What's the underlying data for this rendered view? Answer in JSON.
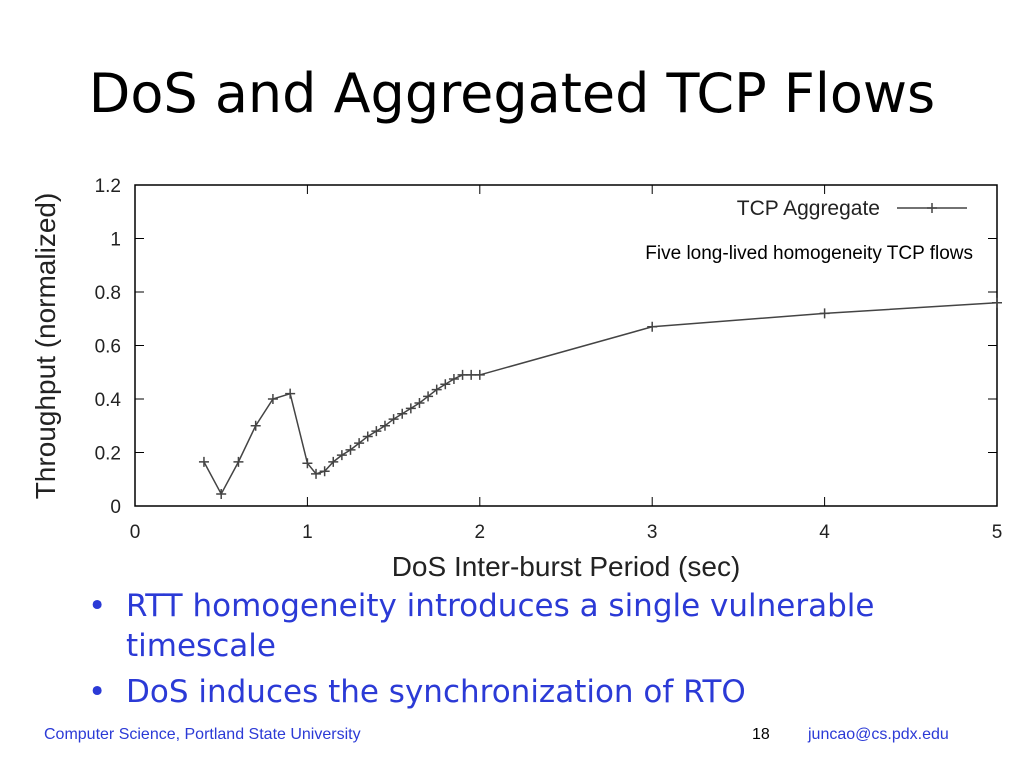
{
  "title": "DoS and Aggregated TCP Flows",
  "bullets": [
    "RTT homogeneity introduces a single vulnerable timescale",
    "DoS induces the synchronization of RTO"
  ],
  "footer": {
    "left": "Computer Science, Portland State University",
    "page": "18",
    "email": "juncao@cs.pdx.edu"
  },
  "chart_data": {
    "type": "line",
    "xlabel": "DoS Inter-burst Period (sec)",
    "ylabel": "Throughput (normalized)",
    "annotation": "Five long-lived homogeneity TCP flows",
    "legend": "top-right",
    "grid": false,
    "xlim": [
      0,
      5
    ],
    "xticks": [
      0,
      1,
      2,
      3,
      4,
      5
    ],
    "ylim": [
      0,
      1.2
    ],
    "yticks": [
      0,
      0.2,
      0.4,
      0.6,
      0.8,
      1,
      1.2
    ],
    "x": [
      0.4,
      0.5,
      0.6,
      0.7,
      0.8,
      0.9,
      1.0,
      1.05,
      1.1,
      1.15,
      1.2,
      1.25,
      1.3,
      1.35,
      1.4,
      1.45,
      1.5,
      1.55,
      1.6,
      1.65,
      1.7,
      1.75,
      1.8,
      1.85,
      1.9,
      1.95,
      2.0,
      3.0,
      4.0,
      5.0
    ],
    "series": [
      {
        "name": "TCP Aggregate",
        "color": "#444444",
        "values": [
          0.165,
          0.045,
          0.165,
          0.3,
          0.4,
          0.42,
          0.16,
          0.12,
          0.13,
          0.165,
          0.19,
          0.21,
          0.235,
          0.26,
          0.28,
          0.3,
          0.325,
          0.345,
          0.365,
          0.385,
          0.41,
          0.435,
          0.455,
          0.475,
          0.49,
          0.49,
          0.49,
          0.67,
          0.72,
          0.76
        ]
      }
    ]
  }
}
